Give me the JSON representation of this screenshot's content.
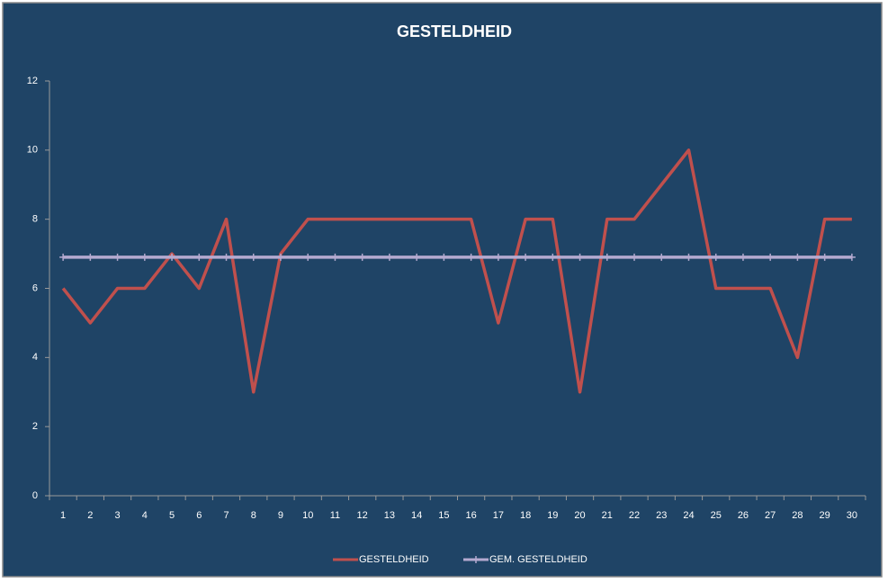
{
  "chart_data": {
    "type": "line",
    "title": "GESTELDHEID",
    "categories": [
      1,
      2,
      3,
      4,
      5,
      6,
      7,
      8,
      9,
      10,
      11,
      12,
      13,
      14,
      15,
      16,
      17,
      18,
      19,
      20,
      21,
      22,
      23,
      24,
      25,
      26,
      27,
      28,
      29,
      30
    ],
    "series": [
      {
        "name": "GESTELDHEID",
        "color": "#c0504d",
        "values": [
          6,
          5,
          6,
          6,
          7,
          6,
          8,
          3,
          7,
          8,
          8,
          8,
          8,
          8,
          8,
          8,
          5,
          8,
          8,
          3,
          8,
          8,
          9,
          10,
          6,
          6,
          6,
          4,
          8,
          8
        ]
      },
      {
        "name": "GEM. GESTELDHEID",
        "color": "#b4aad0",
        "values": [
          6.9,
          6.9,
          6.9,
          6.9,
          6.9,
          6.9,
          6.9,
          6.9,
          6.9,
          6.9,
          6.9,
          6.9,
          6.9,
          6.9,
          6.9,
          6.9,
          6.9,
          6.9,
          6.9,
          6.9,
          6.9,
          6.9,
          6.9,
          6.9,
          6.9,
          6.9,
          6.9,
          6.9,
          6.9,
          6.9
        ]
      }
    ],
    "ylim": [
      0,
      12
    ],
    "yticks": [
      0,
      2,
      4,
      6,
      8,
      10,
      12
    ],
    "grid": false,
    "legend": "bottom"
  }
}
